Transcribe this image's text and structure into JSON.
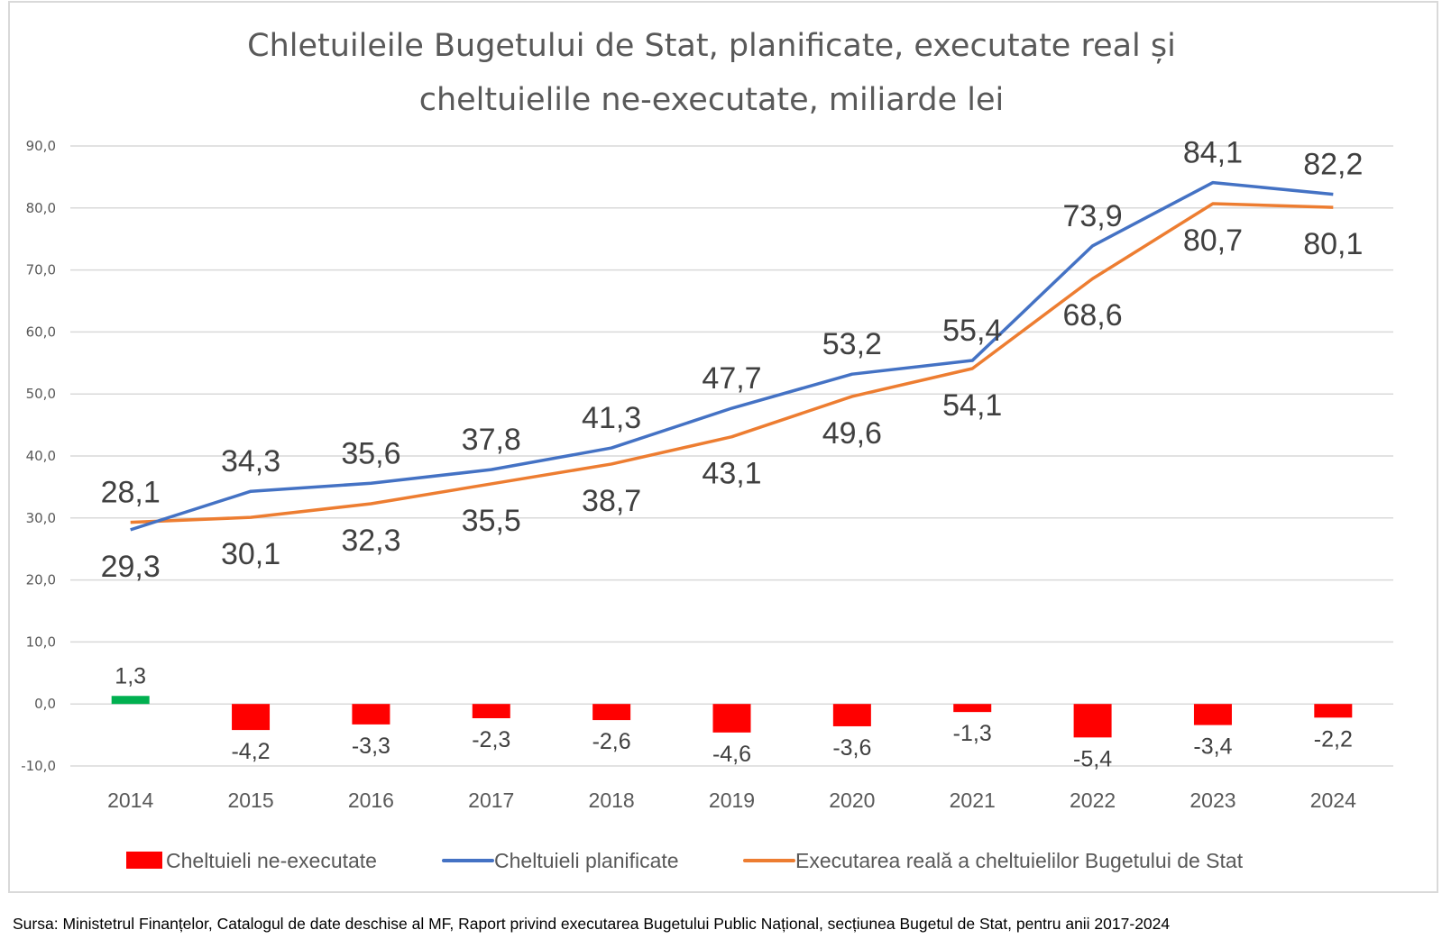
{
  "chart_data": {
    "type": "line",
    "title_lines": [
      "Chletuileile Bugetului de Stat, planificate, executate real și",
      "cheltuielile ne-executate, miliarde lei"
    ],
    "categories": [
      "2014",
      "2015",
      "2016",
      "2017",
      "2018",
      "2019",
      "2020",
      "2021",
      "2022",
      "2023",
      "2024"
    ],
    "ylim": [
      -10,
      90
    ],
    "yticks": [
      90,
      80,
      70,
      60,
      50,
      40,
      30,
      20,
      10,
      0,
      -10
    ],
    "ytick_labels": [
      "90,0",
      "80,0",
      "70,0",
      "60,0",
      "50,0",
      "40,0",
      "30,0",
      "20,0",
      "10,0",
      "0,0",
      "-10,0"
    ],
    "grid": true,
    "legend_position": "bottom",
    "xlabel": "",
    "ylabel": "",
    "series": [
      {
        "name": "Cheltuieli ne-executate",
        "kind": "bar",
        "color": "#ff0000",
        "positive_color": "#00b050",
        "values": [
          1.3,
          -4.2,
          -3.3,
          -2.3,
          -2.6,
          -4.6,
          -3.6,
          -1.3,
          -5.4,
          -3.4,
          -2.2
        ],
        "labels": [
          "1,3",
          "-4,2",
          "-3,3",
          "-2,3",
          "-2,6",
          "-4,6",
          "-3,6",
          "-1,3",
          "-5,4",
          "-3,4",
          "-2,2"
        ]
      },
      {
        "name": "Cheltuieli planificate",
        "kind": "line",
        "color": "#4472c4",
        "values": [
          28.1,
          34.3,
          35.6,
          37.8,
          41.3,
          47.7,
          53.2,
          55.4,
          73.9,
          84.1,
          82.2
        ],
        "labels": [
          "28,1",
          "34,3",
          "35,6",
          "37,8",
          "41,3",
          "47,7",
          "53,2",
          "55,4",
          "73,9",
          "84,1",
          "82,2"
        ]
      },
      {
        "name": "Executarea reală a cheltuielilor Bugetului de Stat",
        "kind": "line",
        "color": "#ed7d31",
        "values": [
          29.3,
          30.1,
          32.3,
          35.5,
          38.7,
          43.1,
          49.6,
          54.1,
          68.6,
          80.7,
          80.1
        ],
        "labels": [
          "29,3",
          "30,1",
          "32,3",
          "35,5",
          "38,7",
          "43,1",
          "49,6",
          "54,1",
          "68,6",
          "80,7",
          "80,1"
        ]
      }
    ]
  },
  "source_note": "Sursa: Ministetrul Finanțelor, Catalogul de date deschise al MF, Raport privind executarea Bugetului Public Național, secțiunea Bugetul de Stat, pentru anii 2017-2024"
}
